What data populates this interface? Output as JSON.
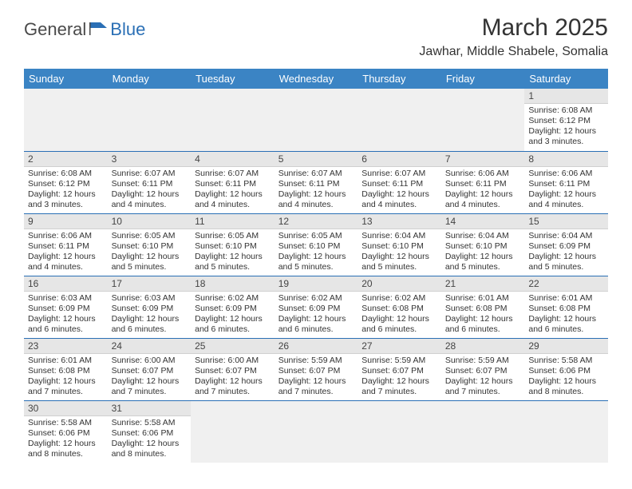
{
  "logo": {
    "part1": "General",
    "part2": "Blue"
  },
  "title": "March 2025",
  "location": "Jawhar, Middle Shabele, Somalia",
  "colors": {
    "header_bg": "#3b84c4",
    "header_text": "#ffffff",
    "daynum_bg": "#e6e6e6",
    "border": "#2a6fb5",
    "logo_blue": "#2a6fb5",
    "logo_gray": "#4a4a4a"
  },
  "day_headers": [
    "Sunday",
    "Monday",
    "Tuesday",
    "Wednesday",
    "Thursday",
    "Friday",
    "Saturday"
  ],
  "weeks": [
    [
      null,
      null,
      null,
      null,
      null,
      null,
      {
        "n": "1",
        "sunrise": "Sunrise: 6:08 AM",
        "sunset": "Sunset: 6:12 PM",
        "daylight": "Daylight: 12 hours and 3 minutes."
      }
    ],
    [
      {
        "n": "2",
        "sunrise": "Sunrise: 6:08 AM",
        "sunset": "Sunset: 6:12 PM",
        "daylight": "Daylight: 12 hours and 3 minutes."
      },
      {
        "n": "3",
        "sunrise": "Sunrise: 6:07 AM",
        "sunset": "Sunset: 6:11 PM",
        "daylight": "Daylight: 12 hours and 4 minutes."
      },
      {
        "n": "4",
        "sunrise": "Sunrise: 6:07 AM",
        "sunset": "Sunset: 6:11 PM",
        "daylight": "Daylight: 12 hours and 4 minutes."
      },
      {
        "n": "5",
        "sunrise": "Sunrise: 6:07 AM",
        "sunset": "Sunset: 6:11 PM",
        "daylight": "Daylight: 12 hours and 4 minutes."
      },
      {
        "n": "6",
        "sunrise": "Sunrise: 6:07 AM",
        "sunset": "Sunset: 6:11 PM",
        "daylight": "Daylight: 12 hours and 4 minutes."
      },
      {
        "n": "7",
        "sunrise": "Sunrise: 6:06 AM",
        "sunset": "Sunset: 6:11 PM",
        "daylight": "Daylight: 12 hours and 4 minutes."
      },
      {
        "n": "8",
        "sunrise": "Sunrise: 6:06 AM",
        "sunset": "Sunset: 6:11 PM",
        "daylight": "Daylight: 12 hours and 4 minutes."
      }
    ],
    [
      {
        "n": "9",
        "sunrise": "Sunrise: 6:06 AM",
        "sunset": "Sunset: 6:11 PM",
        "daylight": "Daylight: 12 hours and 4 minutes."
      },
      {
        "n": "10",
        "sunrise": "Sunrise: 6:05 AM",
        "sunset": "Sunset: 6:10 PM",
        "daylight": "Daylight: 12 hours and 5 minutes."
      },
      {
        "n": "11",
        "sunrise": "Sunrise: 6:05 AM",
        "sunset": "Sunset: 6:10 PM",
        "daylight": "Daylight: 12 hours and 5 minutes."
      },
      {
        "n": "12",
        "sunrise": "Sunrise: 6:05 AM",
        "sunset": "Sunset: 6:10 PM",
        "daylight": "Daylight: 12 hours and 5 minutes."
      },
      {
        "n": "13",
        "sunrise": "Sunrise: 6:04 AM",
        "sunset": "Sunset: 6:10 PM",
        "daylight": "Daylight: 12 hours and 5 minutes."
      },
      {
        "n": "14",
        "sunrise": "Sunrise: 6:04 AM",
        "sunset": "Sunset: 6:10 PM",
        "daylight": "Daylight: 12 hours and 5 minutes."
      },
      {
        "n": "15",
        "sunrise": "Sunrise: 6:04 AM",
        "sunset": "Sunset: 6:09 PM",
        "daylight": "Daylight: 12 hours and 5 minutes."
      }
    ],
    [
      {
        "n": "16",
        "sunrise": "Sunrise: 6:03 AM",
        "sunset": "Sunset: 6:09 PM",
        "daylight": "Daylight: 12 hours and 6 minutes."
      },
      {
        "n": "17",
        "sunrise": "Sunrise: 6:03 AM",
        "sunset": "Sunset: 6:09 PM",
        "daylight": "Daylight: 12 hours and 6 minutes."
      },
      {
        "n": "18",
        "sunrise": "Sunrise: 6:02 AM",
        "sunset": "Sunset: 6:09 PM",
        "daylight": "Daylight: 12 hours and 6 minutes."
      },
      {
        "n": "19",
        "sunrise": "Sunrise: 6:02 AM",
        "sunset": "Sunset: 6:09 PM",
        "daylight": "Daylight: 12 hours and 6 minutes."
      },
      {
        "n": "20",
        "sunrise": "Sunrise: 6:02 AM",
        "sunset": "Sunset: 6:08 PM",
        "daylight": "Daylight: 12 hours and 6 minutes."
      },
      {
        "n": "21",
        "sunrise": "Sunrise: 6:01 AM",
        "sunset": "Sunset: 6:08 PM",
        "daylight": "Daylight: 12 hours and 6 minutes."
      },
      {
        "n": "22",
        "sunrise": "Sunrise: 6:01 AM",
        "sunset": "Sunset: 6:08 PM",
        "daylight": "Daylight: 12 hours and 6 minutes."
      }
    ],
    [
      {
        "n": "23",
        "sunrise": "Sunrise: 6:01 AM",
        "sunset": "Sunset: 6:08 PM",
        "daylight": "Daylight: 12 hours and 7 minutes."
      },
      {
        "n": "24",
        "sunrise": "Sunrise: 6:00 AM",
        "sunset": "Sunset: 6:07 PM",
        "daylight": "Daylight: 12 hours and 7 minutes."
      },
      {
        "n": "25",
        "sunrise": "Sunrise: 6:00 AM",
        "sunset": "Sunset: 6:07 PM",
        "daylight": "Daylight: 12 hours and 7 minutes."
      },
      {
        "n": "26",
        "sunrise": "Sunrise: 5:59 AM",
        "sunset": "Sunset: 6:07 PM",
        "daylight": "Daylight: 12 hours and 7 minutes."
      },
      {
        "n": "27",
        "sunrise": "Sunrise: 5:59 AM",
        "sunset": "Sunset: 6:07 PM",
        "daylight": "Daylight: 12 hours and 7 minutes."
      },
      {
        "n": "28",
        "sunrise": "Sunrise: 5:59 AM",
        "sunset": "Sunset: 6:07 PM",
        "daylight": "Daylight: 12 hours and 7 minutes."
      },
      {
        "n": "29",
        "sunrise": "Sunrise: 5:58 AM",
        "sunset": "Sunset: 6:06 PM",
        "daylight": "Daylight: 12 hours and 8 minutes."
      }
    ],
    [
      {
        "n": "30",
        "sunrise": "Sunrise: 5:58 AM",
        "sunset": "Sunset: 6:06 PM",
        "daylight": "Daylight: 12 hours and 8 minutes."
      },
      {
        "n": "31",
        "sunrise": "Sunrise: 5:58 AM",
        "sunset": "Sunset: 6:06 PM",
        "daylight": "Daylight: 12 hours and 8 minutes."
      },
      null,
      null,
      null,
      null,
      null
    ]
  ]
}
